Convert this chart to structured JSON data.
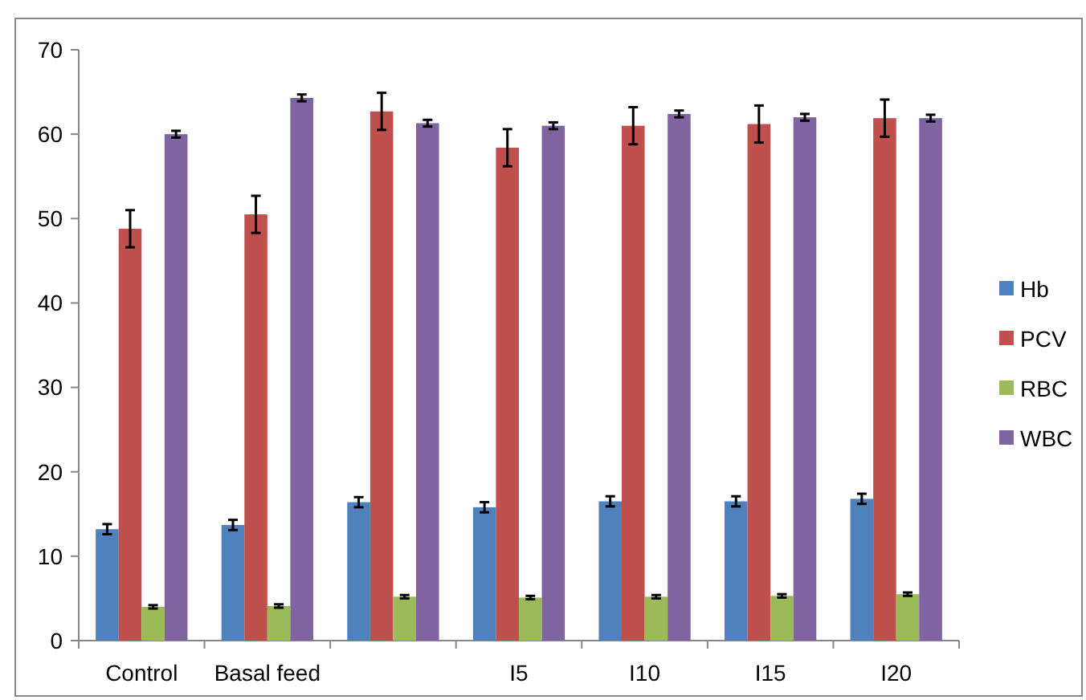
{
  "chart_data": {
    "type": "bar",
    "categories": [
      "Control",
      "Basal feed",
      null,
      "I5",
      "I10",
      "I15",
      "I20"
    ],
    "series": [
      {
        "name": "Hb",
        "color": "#4f81bd",
        "values": [
          13.2,
          13.7,
          16.4,
          15.8,
          16.5,
          16.5,
          16.8
        ],
        "errors": [
          0.6,
          0.6,
          0.6,
          0.6,
          0.6,
          0.6,
          0.6
        ]
      },
      {
        "name": "PCV",
        "color": "#c0504d",
        "values": [
          48.8,
          50.5,
          62.7,
          58.4,
          61.0,
          61.2,
          61.9
        ],
        "errors": [
          2.2,
          2.2,
          2.2,
          2.2,
          2.2,
          2.2,
          2.2
        ]
      },
      {
        "name": "RBC",
        "color": "#9bbb59",
        "values": [
          4.0,
          4.1,
          5.2,
          5.1,
          5.2,
          5.3,
          5.5
        ],
        "errors": [
          0.2,
          0.2,
          0.2,
          0.2,
          0.2,
          0.2,
          0.2
        ]
      },
      {
        "name": "WBC",
        "color": "#8064a2",
        "values": [
          60.0,
          64.3,
          61.3,
          61.0,
          62.4,
          62.0,
          61.9
        ],
        "errors": [
          0.4,
          0.4,
          0.4,
          0.4,
          0.4,
          0.4,
          0.4
        ]
      }
    ],
    "ylim": [
      0,
      70
    ],
    "yticks": [
      0,
      10,
      20,
      30,
      40,
      50,
      60,
      70
    ],
    "grid": false,
    "legend": "right"
  }
}
